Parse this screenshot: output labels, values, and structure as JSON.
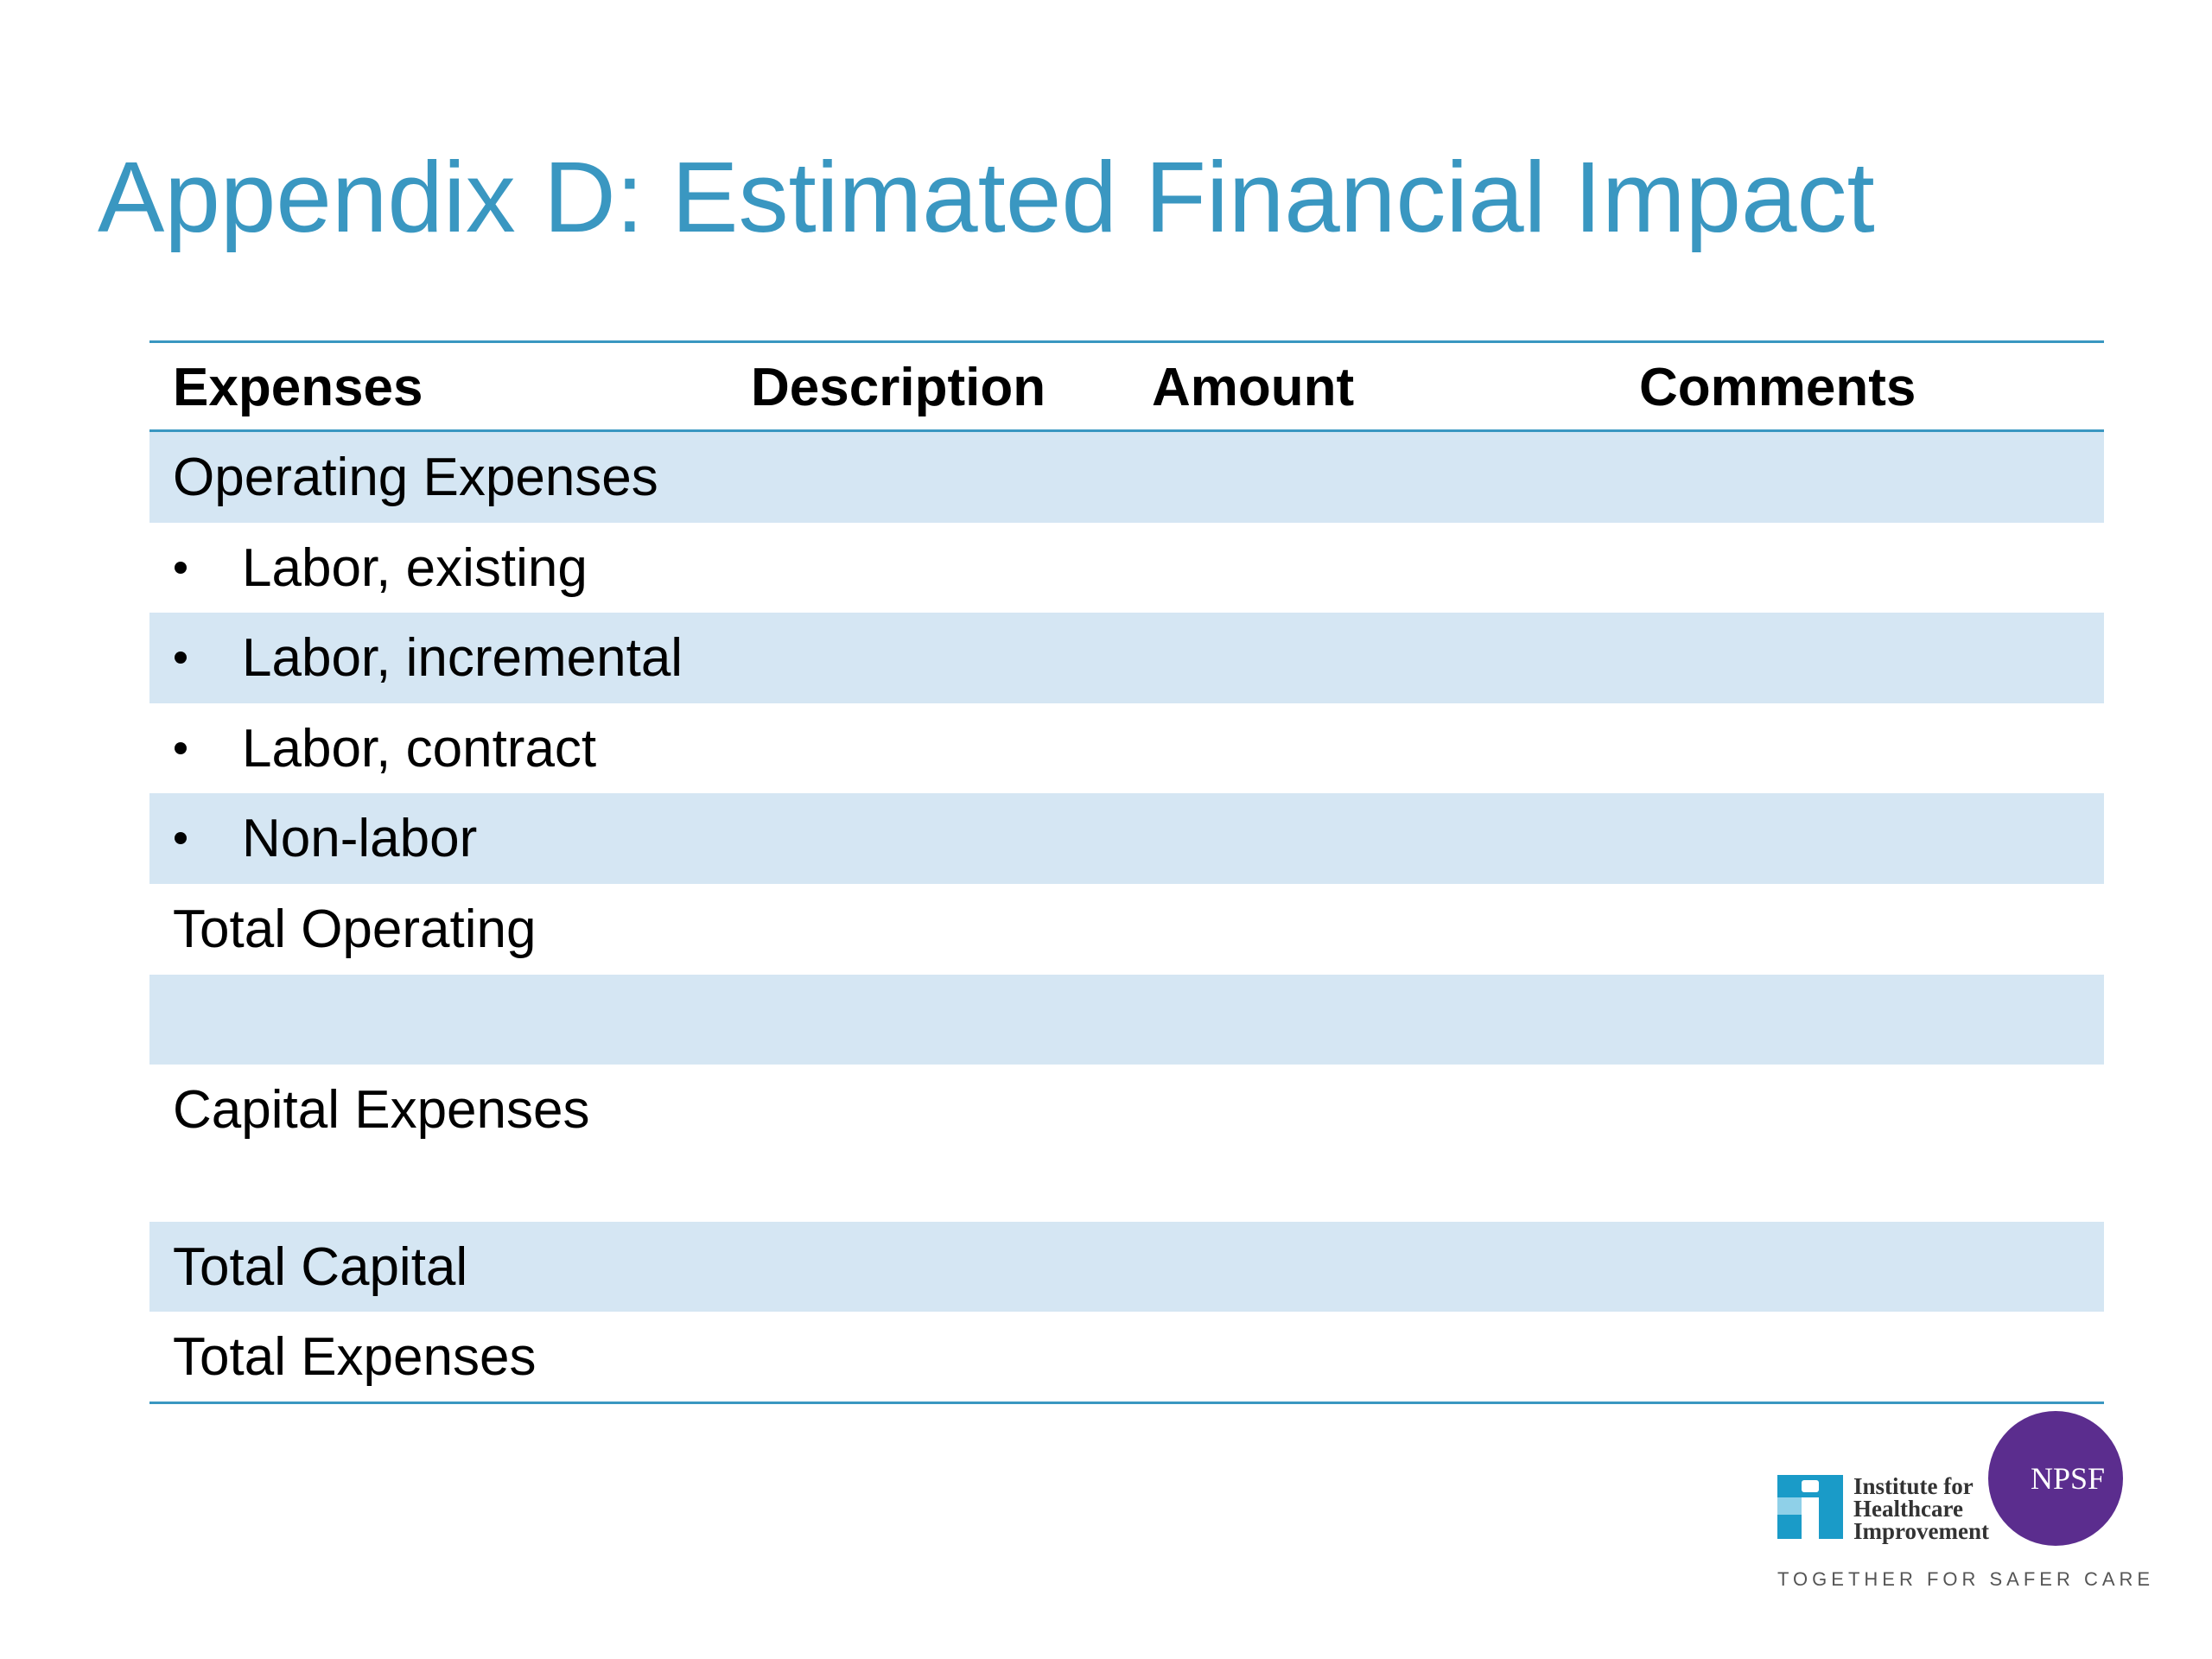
{
  "title": "Appendix D: Estimated Financial Impact",
  "table": {
    "header": [
      "Expenses",
      "Description",
      "Amount",
      "Comments"
    ],
    "rows": [
      "Operating Expenses",
      "Labor, existing",
      "Labor, incremental",
      "Labor, contract",
      "Non-labor",
      "Total Operating",
      "Capital Expenses",
      "Total Capital",
      "Total Expenses"
    ]
  },
  "logo": {
    "ihi": [
      "Institute for",
      "Healthcare",
      "Improvement"
    ],
    "npsf": "NPSF",
    "tagline": "TOGETHER FOR SAFER CARE"
  }
}
